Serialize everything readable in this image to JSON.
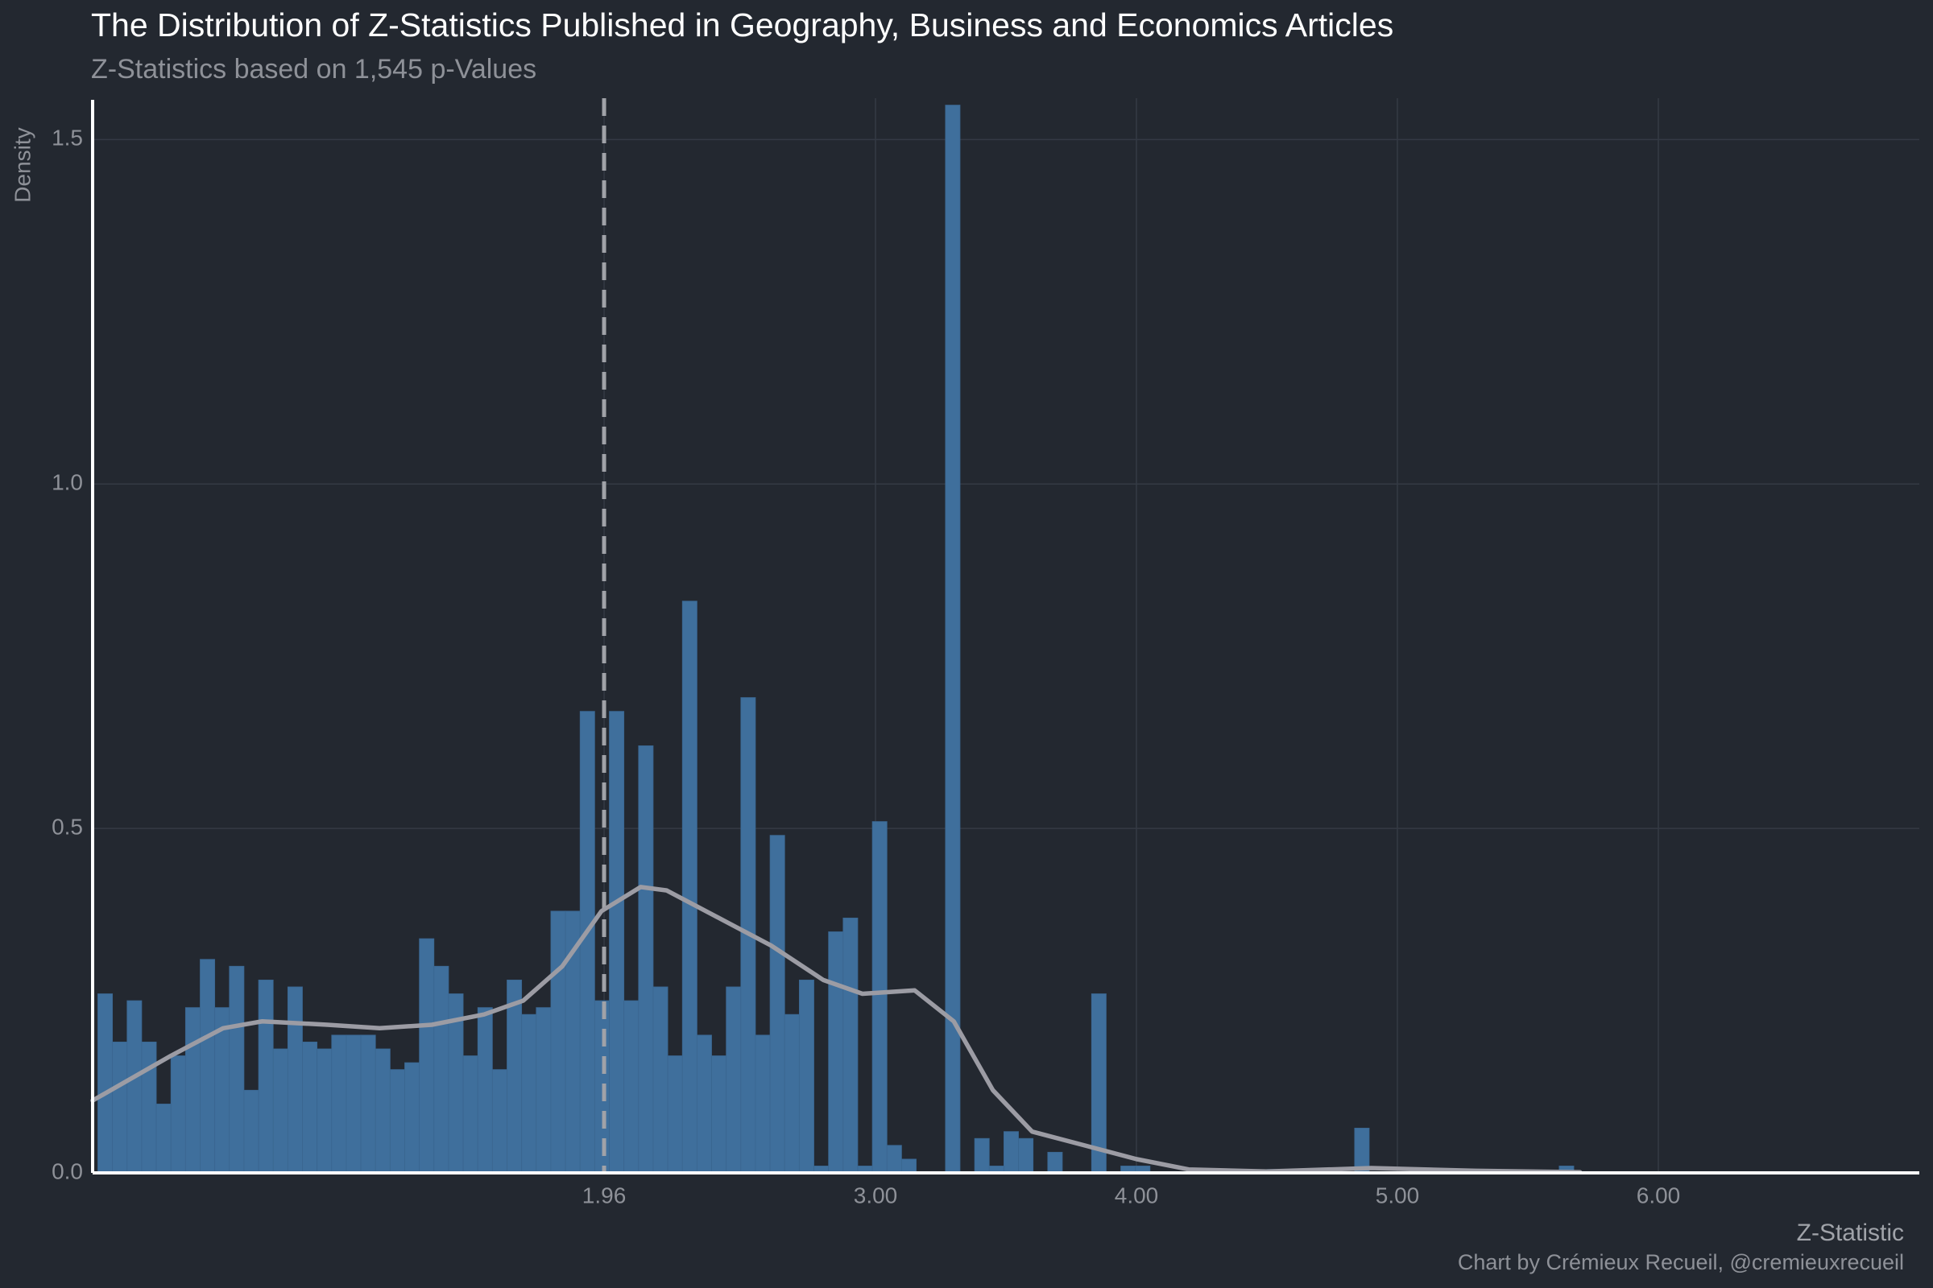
{
  "chart_data": {
    "type": "histogram",
    "title": "The Distribution of Z-Statistics Published in Geography, Business and Economics Articles",
    "subtitle": "Z-Statistics based on 1,545 p-Values",
    "x_label": "Z-Statistic",
    "y_label": "Density",
    "caption": "Chart by Crémieux Recueil, @cremieuxrecueil",
    "color": "#3f6f9c",
    "bins": [
      0.02,
      0.076,
      0.132,
      0.188,
      0.244,
      0.3,
      0.356,
      0.412,
      0.468,
      0.524,
      0.58,
      0.636,
      0.692,
      0.748,
      0.804,
      0.86,
      0.916,
      0.972,
      1.028,
      1.084,
      1.14,
      1.196,
      1.252,
      1.308,
      1.364,
      1.42,
      1.476,
      1.532,
      1.588,
      1.644,
      1.7,
      1.756,
      1.812,
      1.868,
      1.924,
      1.98,
      2.036,
      2.092,
      2.148,
      2.204,
      2.26,
      2.316,
      2.372,
      2.428,
      2.484,
      2.54,
      2.596,
      2.652,
      2.708,
      2.764,
      2.82,
      2.876,
      2.932,
      2.988,
      3.044,
      3.1,
      3.156,
      3.212,
      3.268,
      3.324,
      3.38,
      3.436,
      3.492,
      3.548,
      3.604,
      3.66,
      3.716,
      3.772,
      3.828,
      3.884,
      3.94,
      3.996,
      4.052,
      4.108,
      4.164,
      4.22,
      4.276,
      4.332,
      4.388,
      4.444,
      4.5,
      4.556,
      4.612,
      4.668,
      4.724,
      4.78,
      4.836,
      4.892,
      4.948,
      5.004,
      5.06,
      5.116,
      5.172,
      5.228,
      5.284,
      5.34,
      5.396,
      5.452,
      5.508,
      5.564,
      5.62,
      5.676
    ],
    "counts": [
      0.26,
      0.19,
      0.25,
      0.19,
      0.1,
      0.17,
      0.24,
      0.31,
      0.24,
      0.3,
      0.12,
      0.28,
      0.18,
      0.27,
      0.19,
      0.18,
      0.2,
      0.2,
      0.2,
      0.18,
      0.15,
      0.16,
      0.34,
      0.3,
      0.26,
      0.17,
      0.24,
      0.15,
      0.28,
      0.23,
      0.24,
      0.38,
      0.38,
      0.67,
      0.25,
      0.67,
      0.25,
      0.62,
      0.27,
      0.17,
      0.83,
      0.2,
      0.17,
      0.27,
      0.69,
      0.2,
      0.49,
      0.23,
      0.28,
      0.01,
      0.35,
      0.37,
      0.01,
      0.51,
      0.04,
      0.02,
      0,
      0,
      1.55,
      0,
      0.05,
      0.01,
      0.06,
      0.05,
      0,
      0.03,
      0,
      0,
      0.26,
      0,
      0.01,
      0.01,
      0,
      0,
      0,
      0,
      0,
      0,
      0.005,
      0,
      0.005,
      0,
      0,
      0,
      0,
      0,
      0.065,
      0,
      0,
      0,
      0,
      0,
      0,
      0,
      0,
      0.005,
      0,
      0,
      0,
      0,
      0.01
    ],
    "density": {
      "color": "#9c9ca4",
      "x": [
        0.0,
        0.3,
        0.5,
        0.65,
        0.9,
        1.1,
        1.3,
        1.5,
        1.65,
        1.8,
        1.95,
        2.1,
        2.2,
        2.4,
        2.6,
        2.8,
        2.95,
        3.15,
        3.3,
        3.45,
        3.6,
        3.8,
        4.0,
        4.2,
        4.5,
        4.9,
        5.3,
        5.7
      ],
      "values": [
        0.105,
        0.17,
        0.21,
        0.22,
        0.215,
        0.21,
        0.215,
        0.23,
        0.25,
        0.3,
        0.38,
        0.415,
        0.41,
        0.37,
        0.33,
        0.28,
        0.26,
        0.265,
        0.22,
        0.12,
        0.06,
        0.04,
        0.02,
        0.005,
        0.002,
        0.007,
        0.003,
        0.001
      ]
    },
    "vline": 1.96,
    "xlim": [
      0,
      7
    ],
    "ylim": [
      0,
      1.56
    ],
    "xticks": [
      1.96,
      {
        "value": 3,
        "label": "3.00"
      },
      {
        "value": 4,
        "label": "4.00"
      },
      {
        "value": 5,
        "label": "5.00"
      },
      {
        "value": 6,
        "label": "6.00"
      }
    ],
    "yticks": [
      {
        "value": 0,
        "label": "0.0"
      },
      0.5,
      {
        "value": 1,
        "label": "1.0"
      },
      1.5
    ],
    "grid": true
  }
}
